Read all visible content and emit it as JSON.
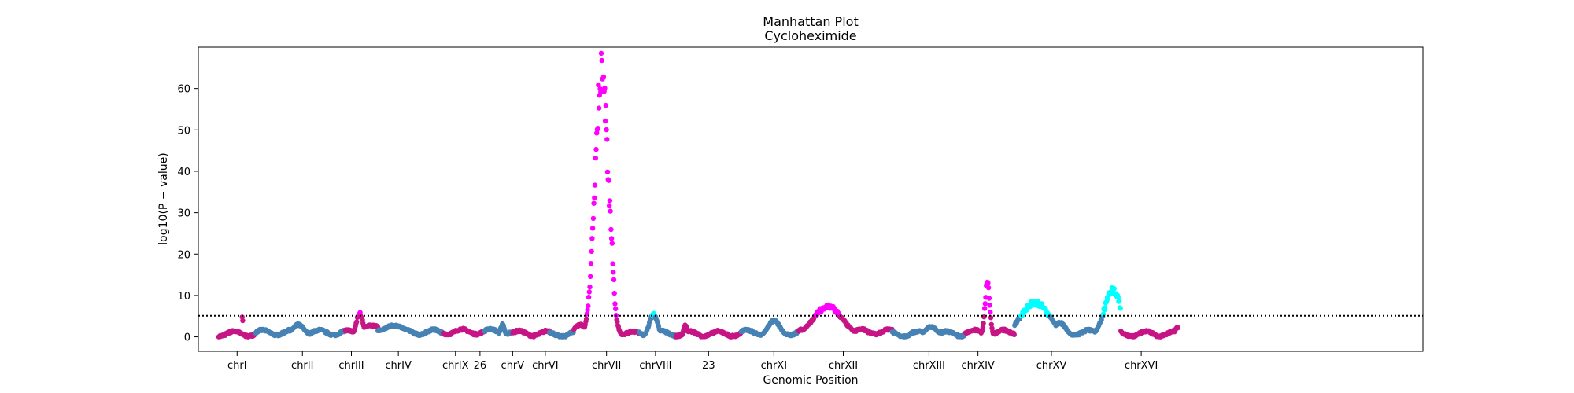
{
  "chart_data": {
    "type": "scatter",
    "title": "Manhattan Plot",
    "subtitle": "Cycloheximide",
    "xlabel": "Genomic Position",
    "ylabel": "log10(P − value)",
    "ylim": [
      -3.5,
      70
    ],
    "yticks": [
      0,
      10,
      20,
      30,
      40,
      50,
      60
    ],
    "xlim": [
      0,
      300
    ],
    "threshold": 5.1,
    "grid": false,
    "colors": {
      "odd_chromosome": "#c71585",
      "even_chromosome": "#4682b4",
      "significant_odd": "#ff00ff",
      "significant_even": "#00ffff",
      "threshold_line": "#000000"
    },
    "chromosomes": [
      {
        "label": "chrI",
        "start": 5,
        "end": 14,
        "center": 9.5,
        "parity": "odd",
        "base": 0.5
      },
      {
        "label": "chrII",
        "start": 14,
        "end": 36,
        "center": 25.5,
        "parity": "even",
        "base": 0.8
      },
      {
        "label": "chrIII",
        "start": 36,
        "end": 44,
        "center": 37.5,
        "parity": "odd",
        "base": 0.7
      },
      {
        "label": "chrIV",
        "start": 44,
        "end": 60,
        "center": 49,
        "parity": "even",
        "base": 0.9
      },
      {
        "label": "chrIX",
        "start": 60,
        "end": 70,
        "center": 63,
        "parity": "odd",
        "base": 1.0
      },
      {
        "label": "26",
        "start": 70,
        "end": 77,
        "center": 69,
        "parity": "even",
        "base": 1.0
      },
      {
        "label": "chrV",
        "start": 77,
        "end": 86,
        "center": 77,
        "parity": "odd",
        "base": 0.6
      },
      {
        "label": "chrVI",
        "start": 86,
        "end": 92,
        "center": 85,
        "parity": "even",
        "base": 0.4
      },
      {
        "label": "chrVII",
        "start": 92,
        "end": 108,
        "center": 100,
        "parity": "odd",
        "base": 0.5
      },
      {
        "label": "chrVIII",
        "start": 108,
        "end": 117,
        "center": 112,
        "parity": "even",
        "base": 0.6
      },
      {
        "label": "23",
        "start": 117,
        "end": 133,
        "center": 125,
        "parity": "odd",
        "base": 0.5
      },
      {
        "label": "chrXI",
        "start": 133,
        "end": 147,
        "center": 141,
        "parity": "even",
        "base": 0.8
      },
      {
        "label": "chrXII",
        "start": 147,
        "end": 170,
        "center": 158,
        "parity": "odd",
        "base": 1.0
      },
      {
        "label": "chrXIII",
        "start": 170,
        "end": 188,
        "center": 179,
        "parity": "even",
        "base": 0.5
      },
      {
        "label": "chrXIV",
        "start": 188,
        "end": 200,
        "center": 191,
        "parity": "odd",
        "base": 0.8
      },
      {
        "label": "chrXV",
        "start": 200,
        "end": 226,
        "center": 209,
        "parity": "even",
        "base": 0.8
      },
      {
        "label": "chrXVI",
        "start": 226,
        "end": 240,
        "center": 231,
        "parity": "odd",
        "base": 0.5
      }
    ],
    "peaks": [
      {
        "x": 10.8,
        "y": 5.6,
        "width": 0.1
      },
      {
        "x": 24.5,
        "y": 3.0,
        "width": 1.5
      },
      {
        "x": 39.5,
        "y": 5.8,
        "width": 0.8
      },
      {
        "x": 42.5,
        "y": 2.8,
        "width": 3.0
      },
      {
        "x": 48.0,
        "y": 2.8,
        "width": 3.0
      },
      {
        "x": 74.5,
        "y": 3.0,
        "width": 0.5
      },
      {
        "x": 93.5,
        "y": 3.0,
        "width": 1.5
      },
      {
        "x": 98.8,
        "y": 66.0,
        "width": 1.6
      },
      {
        "x": 100.6,
        "y": 33.0,
        "width": 0.9
      },
      {
        "x": 111.5,
        "y": 5.5,
        "width": 1.0
      },
      {
        "x": 119.3,
        "y": 3.0,
        "width": 0.4
      },
      {
        "x": 141.0,
        "y": 4.0,
        "width": 1.5
      },
      {
        "x": 154.2,
        "y": 7.5,
        "width": 3.5
      },
      {
        "x": 179.5,
        "y": 2.5,
        "width": 1.5
      },
      {
        "x": 193.3,
        "y": 13.0,
        "width": 0.6
      },
      {
        "x": 205.0,
        "y": 8.5,
        "width": 3.5
      },
      {
        "x": 211.0,
        "y": 3.5,
        "width": 1.5
      },
      {
        "x": 224.0,
        "y": 11.5,
        "width": 2.0
      },
      {
        "x": 239.8,
        "y": 2.5,
        "width": 0.5
      }
    ]
  }
}
